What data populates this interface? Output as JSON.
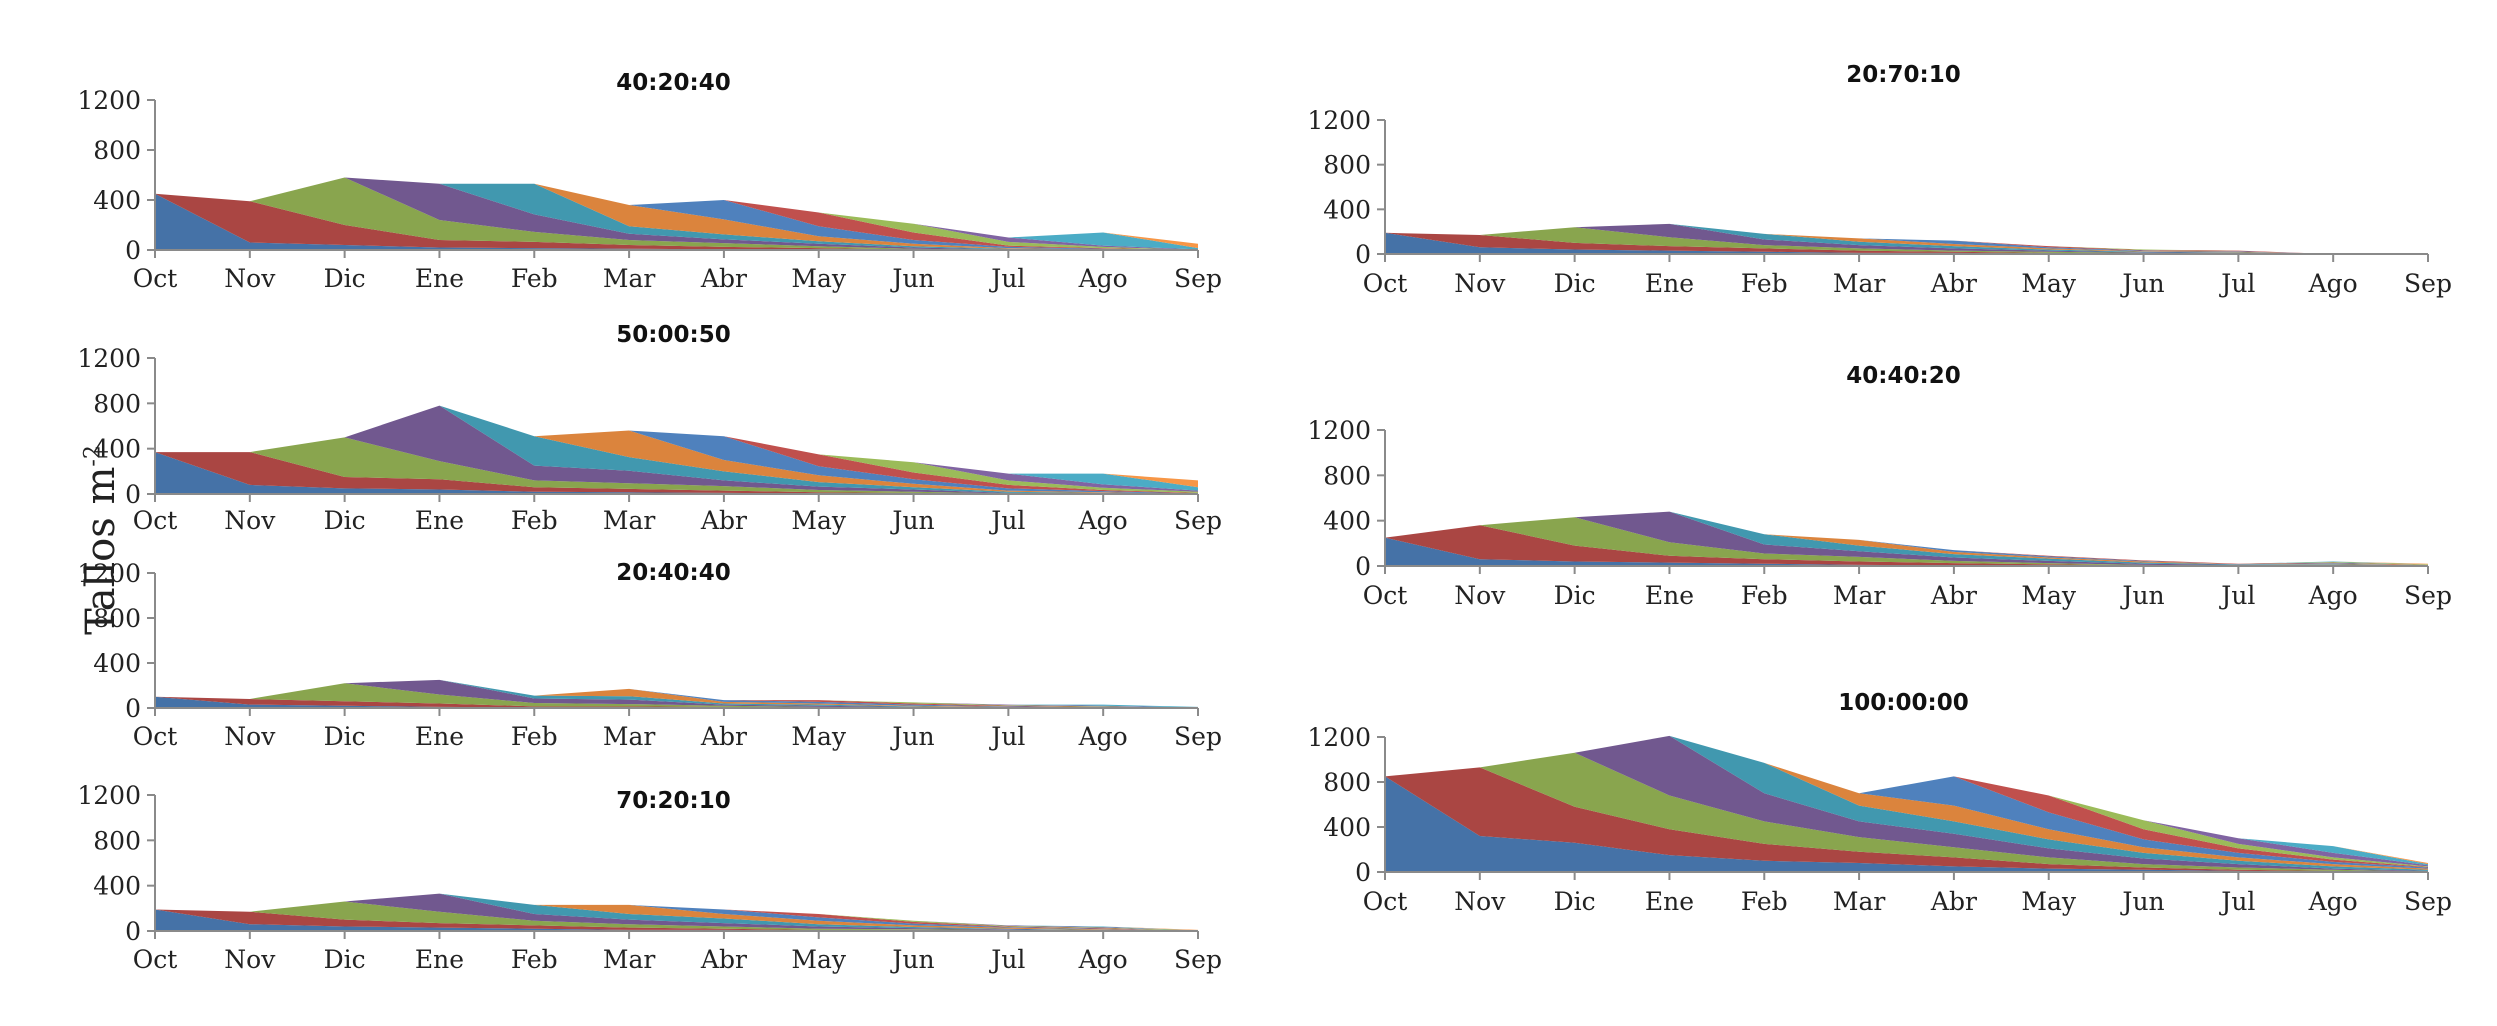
{
  "y_axis_label": "Tallos m",
  "y_axis_label_sup": "-2",
  "months": [
    "Oct",
    "Nov",
    "Dic",
    "Ene",
    "Feb",
    "Mar",
    "Abr",
    "May",
    "Jun",
    "Jul",
    "Ago",
    "Sep"
  ],
  "colors": [
    "#4572A7",
    "#AA4643",
    "#89A54E",
    "#71588F",
    "#4198AF",
    "#DB843D",
    "#4F81BD",
    "#C0504D",
    "#9BBB59",
    "#8064A2",
    "#4BACC6",
    "#F79646"
  ],
  "chart_data": [
    {
      "type": "area",
      "title": "40:20:40",
      "ylim": [
        0,
        1200
      ],
      "yticks": [
        0,
        400,
        800,
        1200
      ],
      "categories": [
        "Oct",
        "Nov",
        "Dic",
        "Ene",
        "Feb",
        "Mar",
        "Abr",
        "May",
        "Jun",
        "Jul",
        "Ago",
        "Sep"
      ],
      "totals": [
        450,
        390,
        580,
        530,
        530,
        360,
        400,
        300,
        210,
        100,
        140,
        50
      ],
      "series_values": [
        [
          450,
          60,
          40,
          20,
          15,
          10,
          5,
          5,
          0,
          0,
          0,
          0
        ],
        [
          0,
          330,
          160,
          60,
          50,
          30,
          20,
          10,
          5,
          0,
          0,
          0
        ],
        [
          0,
          0,
          380,
          160,
          80,
          40,
          30,
          15,
          5,
          0,
          0,
          0
        ],
        [
          0,
          0,
          0,
          290,
          140,
          50,
          30,
          20,
          10,
          5,
          0,
          0
        ],
        [
          0,
          0,
          0,
          0,
          245,
          60,
          40,
          20,
          10,
          5,
          0,
          0
        ],
        [
          0,
          0,
          0,
          0,
          0,
          170,
          120,
          40,
          20,
          5,
          5,
          0
        ],
        [
          0,
          0,
          0,
          0,
          0,
          0,
          155,
          80,
          30,
          10,
          5,
          0
        ],
        [
          0,
          0,
          0,
          0,
          0,
          0,
          0,
          110,
          60,
          10,
          5,
          0
        ],
        [
          0,
          0,
          0,
          0,
          0,
          0,
          0,
          0,
          70,
          30,
          10,
          0
        ],
        [
          0,
          0,
          0,
          0,
          0,
          0,
          0,
          0,
          0,
          35,
          10,
          5
        ],
        [
          0,
          0,
          0,
          0,
          0,
          0,
          0,
          0,
          0,
          0,
          105,
          10
        ],
        [
          0,
          0,
          0,
          0,
          0,
          0,
          0,
          0,
          0,
          0,
          0,
          35
        ]
      ]
    },
    {
      "type": "area",
      "title": "50:00:50",
      "ylim": [
        0,
        1200
      ],
      "yticks": [
        0,
        400,
        800,
        1200
      ],
      "categories": [
        "Oct",
        "Nov",
        "Dic",
        "Ene",
        "Feb",
        "Mar",
        "Abr",
        "May",
        "Jun",
        "Jul",
        "Ago",
        "Sep"
      ],
      "totals": [
        370,
        370,
        500,
        780,
        510,
        560,
        510,
        350,
        280,
        180,
        180,
        120
      ],
      "series_values": [
        [
          370,
          80,
          50,
          40,
          20,
          15,
          10,
          5,
          5,
          0,
          0,
          0
        ],
        [
          0,
          290,
          100,
          90,
          40,
          30,
          20,
          10,
          5,
          0,
          0,
          0
        ],
        [
          0,
          0,
          350,
          160,
          60,
          50,
          40,
          20,
          10,
          5,
          0,
          0
        ],
        [
          0,
          0,
          0,
          490,
          130,
          110,
          50,
          30,
          20,
          5,
          5,
          0
        ],
        [
          0,
          0,
          0,
          0,
          260,
          120,
          80,
          40,
          20,
          10,
          5,
          0
        ],
        [
          0,
          0,
          0,
          0,
          0,
          235,
          100,
          60,
          30,
          10,
          5,
          0
        ],
        [
          0,
          0,
          0,
          0,
          0,
          0,
          210,
          80,
          40,
          20,
          10,
          5
        ],
        [
          0,
          0,
          0,
          0,
          0,
          0,
          0,
          105,
          60,
          30,
          10,
          5
        ],
        [
          0,
          0,
          0,
          0,
          0,
          0,
          0,
          0,
          90,
          40,
          20,
          10
        ],
        [
          0,
          0,
          0,
          0,
          0,
          0,
          0,
          0,
          0,
          60,
          30,
          10
        ],
        [
          0,
          0,
          0,
          0,
          0,
          0,
          0,
          0,
          0,
          0,
          95,
          30
        ],
        [
          0,
          0,
          0,
          0,
          0,
          0,
          0,
          0,
          0,
          0,
          0,
          60
        ]
      ]
    },
    {
      "type": "area",
      "title": "20:40:40",
      "ylim": [
        0,
        1200
      ],
      "yticks": [
        0,
        400,
        800,
        1200
      ],
      "categories": [
        "Oct",
        "Nov",
        "Dic",
        "Ene",
        "Feb",
        "Mar",
        "Abr",
        "May",
        "Jun",
        "Jul",
        "Ago",
        "Sep"
      ],
      "totals": [
        100,
        80,
        220,
        250,
        110,
        170,
        70,
        70,
        50,
        30,
        30,
        10
      ],
      "series_values": [
        [
          100,
          30,
          20,
          10,
          5,
          5,
          5,
          0,
          0,
          0,
          0,
          0
        ],
        [
          0,
          50,
          40,
          30,
          10,
          10,
          5,
          5,
          0,
          0,
          0,
          0
        ],
        [
          0,
          0,
          160,
          80,
          30,
          20,
          10,
          5,
          5,
          0,
          0,
          0
        ],
        [
          0,
          0,
          0,
          130,
          40,
          40,
          10,
          10,
          5,
          0,
          0,
          0
        ],
        [
          0,
          0,
          0,
          0,
          25,
          30,
          10,
          10,
          5,
          5,
          0,
          0
        ],
        [
          0,
          0,
          0,
          0,
          0,
          65,
          15,
          10,
          5,
          5,
          0,
          0
        ],
        [
          0,
          0,
          0,
          0,
          0,
          0,
          15,
          15,
          10,
          5,
          5,
          0
        ],
        [
          0,
          0,
          0,
          0,
          0,
          0,
          0,
          15,
          10,
          5,
          5,
          0
        ],
        [
          0,
          0,
          0,
          0,
          0,
          0,
          0,
          0,
          10,
          5,
          5,
          0
        ],
        [
          0,
          0,
          0,
          0,
          0,
          0,
          0,
          0,
          0,
          5,
          5,
          5
        ],
        [
          0,
          0,
          0,
          0,
          0,
          0,
          0,
          0,
          0,
          0,
          10,
          5
        ],
        [
          0,
          0,
          0,
          0,
          0,
          0,
          0,
          0,
          0,
          0,
          0,
          0
        ]
      ]
    },
    {
      "type": "area",
      "title": "70:20:10",
      "ylim": [
        0,
        1200
      ],
      "yticks": [
        0,
        400,
        800,
        1200
      ],
      "categories": [
        "Oct",
        "Nov",
        "Dic",
        "Ene",
        "Feb",
        "Mar",
        "Abr",
        "May",
        "Jun",
        "Jul",
        "Ago",
        "Sep"
      ],
      "totals": [
        190,
        170,
        260,
        330,
        230,
        230,
        190,
        150,
        90,
        50,
        40,
        10
      ],
      "series_values": [
        [
          190,
          60,
          40,
          30,
          20,
          10,
          10,
          5,
          5,
          0,
          0,
          0
        ],
        [
          0,
          110,
          60,
          40,
          30,
          20,
          10,
          5,
          5,
          5,
          0,
          0
        ],
        [
          0,
          0,
          160,
          100,
          40,
          30,
          20,
          10,
          5,
          5,
          0,
          0
        ],
        [
          0,
          0,
          0,
          160,
          60,
          40,
          30,
          20,
          10,
          5,
          5,
          0
        ],
        [
          0,
          0,
          0,
          0,
          80,
          50,
          40,
          20,
          10,
          5,
          5,
          0
        ],
        [
          0,
          0,
          0,
          0,
          0,
          80,
          40,
          30,
          15,
          10,
          5,
          0
        ],
        [
          0,
          0,
          0,
          0,
          0,
          0,
          40,
          30,
          15,
          5,
          5,
          0
        ],
        [
          0,
          0,
          0,
          0,
          0,
          0,
          0,
          30,
          15,
          5,
          5,
          0
        ],
        [
          0,
          0,
          0,
          0,
          0,
          0,
          0,
          0,
          10,
          5,
          5,
          5
        ],
        [
          0,
          0,
          0,
          0,
          0,
          0,
          0,
          0,
          0,
          5,
          5,
          0
        ],
        [
          0,
          0,
          0,
          0,
          0,
          0,
          0,
          0,
          0,
          0,
          5,
          0
        ],
        [
          0,
          0,
          0,
          0,
          0,
          0,
          0,
          0,
          0,
          0,
          0,
          5
        ]
      ]
    },
    {
      "type": "area",
      "title": "20:70:10",
      "ylim": [
        0,
        1200
      ],
      "yticks": [
        0,
        400,
        800,
        1200
      ],
      "categories": [
        "Oct",
        "Nov",
        "Dic",
        "Ene",
        "Feb",
        "Mar",
        "Abr",
        "May",
        "Jun",
        "Jul",
        "Ago",
        "Sep"
      ],
      "totals": [
        190,
        170,
        240,
        270,
        180,
        140,
        120,
        70,
        40,
        30,
        0,
        0
      ],
      "series_values": [
        [
          190,
          60,
          40,
          30,
          20,
          10,
          10,
          5,
          0,
          0,
          0,
          0
        ],
        [
          0,
          110,
          60,
          40,
          30,
          20,
          10,
          5,
          5,
          0,
          0,
          0
        ],
        [
          0,
          0,
          140,
          80,
          30,
          20,
          10,
          10,
          5,
          5,
          0,
          0
        ],
        [
          0,
          0,
          0,
          120,
          50,
          30,
          20,
          10,
          5,
          5,
          0,
          0
        ],
        [
          0,
          0,
          0,
          0,
          50,
          30,
          20,
          10,
          5,
          5,
          0,
          0
        ],
        [
          0,
          0,
          0,
          0,
          0,
          30,
          20,
          10,
          5,
          5,
          0,
          0
        ],
        [
          0,
          0,
          0,
          0,
          0,
          0,
          30,
          10,
          5,
          5,
          0,
          0
        ],
        [
          0,
          0,
          0,
          0,
          0,
          0,
          0,
          10,
          5,
          5,
          0,
          0
        ],
        [
          0,
          0,
          0,
          0,
          0,
          0,
          0,
          0,
          5,
          0,
          0,
          0
        ],
        [
          0,
          0,
          0,
          0,
          0,
          0,
          0,
          0,
          0,
          0,
          0,
          0
        ],
        [
          0,
          0,
          0,
          0,
          0,
          0,
          0,
          0,
          0,
          0,
          0,
          0
        ],
        [
          0,
          0,
          0,
          0,
          0,
          0,
          0,
          0,
          0,
          0,
          0,
          0
        ]
      ]
    },
    {
      "type": "area",
      "title": "40:40:20",
      "ylim": [
        0,
        1200
      ],
      "yticks": [
        0,
        400,
        800,
        1200
      ],
      "categories": [
        "Oct",
        "Nov",
        "Dic",
        "Ene",
        "Feb",
        "Mar",
        "Abr",
        "May",
        "Jun",
        "Jul",
        "Ago",
        "Sep"
      ],
      "totals": [
        250,
        360,
        430,
        480,
        280,
        230,
        140,
        90,
        50,
        20,
        40,
        20
      ],
      "series_values": [
        [
          250,
          60,
          40,
          30,
          20,
          10,
          5,
          5,
          0,
          0,
          0,
          0
        ],
        [
          0,
          300,
          140,
          60,
          40,
          30,
          20,
          10,
          5,
          0,
          0,
          0
        ],
        [
          0,
          0,
          250,
          120,
          50,
          40,
          20,
          10,
          5,
          5,
          5,
          0
        ],
        [
          0,
          0,
          0,
          270,
          80,
          50,
          30,
          20,
          10,
          5,
          5,
          0
        ],
        [
          0,
          0,
          0,
          0,
          90,
          50,
          30,
          20,
          10,
          5,
          5,
          5
        ],
        [
          0,
          0,
          0,
          0,
          0,
          50,
          20,
          10,
          10,
          0,
          5,
          5
        ],
        [
          0,
          0,
          0,
          0,
          0,
          0,
          15,
          10,
          5,
          0,
          5,
          0
        ],
        [
          0,
          0,
          0,
          0,
          0,
          0,
          0,
          5,
          5,
          5,
          5,
          0
        ],
        [
          0,
          0,
          0,
          0,
          0,
          0,
          0,
          0,
          0,
          0,
          5,
          5
        ],
        [
          0,
          0,
          0,
          0,
          0,
          0,
          0,
          0,
          0,
          0,
          0,
          0
        ],
        [
          0,
          0,
          0,
          0,
          0,
          0,
          0,
          0,
          0,
          0,
          5,
          0
        ],
        [
          0,
          0,
          0,
          0,
          0,
          0,
          0,
          0,
          0,
          0,
          0,
          5
        ]
      ]
    },
    {
      "type": "area",
      "title": "100:00:00",
      "ylim": [
        0,
        1200
      ],
      "yticks": [
        0,
        400,
        800,
        1200
      ],
      "categories": [
        "Oct",
        "Nov",
        "Dic",
        "Ene",
        "Feb",
        "Mar",
        "Abr",
        "May",
        "Jun",
        "Jul",
        "Ago",
        "Sep"
      ],
      "totals": [
        850,
        930,
        1060,
        1210,
        970,
        700,
        850,
        680,
        460,
        300,
        230,
        80
      ],
      "series_values": [
        [
          850,
          320,
          260,
          150,
          100,
          80,
          50,
          30,
          20,
          10,
          5,
          0
        ],
        [
          0,
          610,
          320,
          230,
          150,
          100,
          80,
          40,
          20,
          10,
          5,
          0
        ],
        [
          0,
          0,
          480,
          300,
          200,
          130,
          90,
          60,
          30,
          20,
          10,
          5
        ],
        [
          0,
          0,
          0,
          530,
          250,
          140,
          120,
          80,
          50,
          30,
          10,
          5
        ],
        [
          0,
          0,
          0,
          0,
          270,
          140,
          110,
          80,
          50,
          30,
          20,
          10
        ],
        [
          0,
          0,
          0,
          0,
          0,
          110,
          140,
          90,
          50,
          30,
          20,
          10
        ],
        [
          0,
          0,
          0,
          0,
          0,
          0,
          260,
          150,
          70,
          40,
          20,
          10
        ],
        [
          0,
          0,
          0,
          0,
          0,
          0,
          0,
          150,
          90,
          40,
          20,
          5
        ],
        [
          0,
          0,
          0,
          0,
          0,
          0,
          0,
          0,
          80,
          40,
          20,
          5
        ],
        [
          0,
          0,
          0,
          0,
          0,
          0,
          0,
          0,
          0,
          50,
          40,
          10
        ],
        [
          0,
          0,
          0,
          0,
          0,
          0,
          0,
          0,
          0,
          0,
          60,
          10
        ],
        [
          0,
          0,
          0,
          0,
          0,
          0,
          0,
          0,
          0,
          0,
          0,
          10
        ]
      ]
    }
  ]
}
